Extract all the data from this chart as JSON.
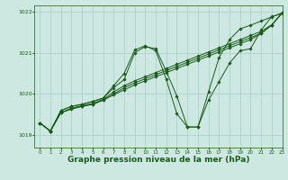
{
  "background_color": "#cce8e0",
  "grid_color": "#aacccc",
  "line_color": "#1a5c1a",
  "marker_color": "#1a5c1a",
  "xlabel": "Graphe pression niveau de la mer (hPa)",
  "xlabel_fontsize": 6.5,
  "xlim": [
    -0.5,
    23
  ],
  "ylim": [
    1018.7,
    1022.15
  ],
  "yticks": [
    1019,
    1020,
    1021,
    1022
  ],
  "xticks": [
    0,
    1,
    2,
    3,
    4,
    5,
    6,
    7,
    8,
    9,
    10,
    11,
    12,
    13,
    14,
    15,
    16,
    17,
    18,
    19,
    20,
    21,
    22,
    23
  ],
  "series": [
    [
      1019.3,
      1019.1,
      1019.6,
      1019.7,
      1019.75,
      1019.82,
      1019.9,
      1020.15,
      1020.35,
      1021.0,
      1021.15,
      1021.1,
      1020.55,
      1019.95,
      1019.2,
      1019.2,
      1019.85,
      1020.3,
      1020.75,
      1021.05,
      1021.1,
      1021.55,
      1021.88,
      1021.95
    ],
    [
      1019.3,
      1019.1,
      1019.6,
      1019.7,
      1019.75,
      1019.82,
      1019.9,
      1020.2,
      1020.5,
      1021.07,
      1021.17,
      1021.05,
      1020.35,
      1019.52,
      1019.2,
      1019.2,
      1020.05,
      1020.88,
      1021.32,
      1021.58,
      1021.67,
      1021.77,
      1021.87,
      1021.97
    ],
    [
      1019.3,
      1019.1,
      1019.55,
      1019.65,
      1019.72,
      1019.77,
      1019.87,
      1020.05,
      1020.2,
      1020.32,
      1020.42,
      1020.52,
      1020.62,
      1020.72,
      1020.82,
      1020.92,
      1021.02,
      1021.12,
      1021.22,
      1021.32,
      1021.42,
      1021.52,
      1021.68,
      1021.97
    ],
    [
      1019.3,
      1019.1,
      1019.55,
      1019.65,
      1019.7,
      1019.75,
      1019.85,
      1020.0,
      1020.15,
      1020.27,
      1020.37,
      1020.47,
      1020.57,
      1020.67,
      1020.77,
      1020.87,
      1020.97,
      1021.07,
      1021.17,
      1021.27,
      1021.37,
      1021.47,
      1021.67,
      1021.97
    ],
    [
      1019.3,
      1019.1,
      1019.55,
      1019.63,
      1019.7,
      1019.75,
      1019.85,
      1019.98,
      1020.1,
      1020.22,
      1020.32,
      1020.42,
      1020.52,
      1020.62,
      1020.72,
      1020.82,
      1020.92,
      1021.02,
      1021.12,
      1021.22,
      1021.32,
      1021.47,
      1021.67,
      1021.97
    ]
  ]
}
